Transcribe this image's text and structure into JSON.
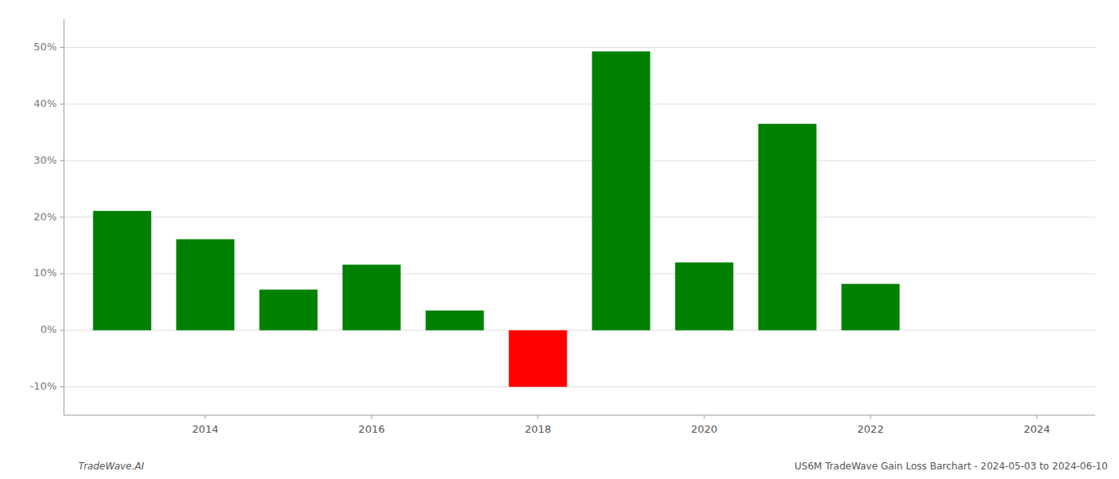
{
  "chart_data": {
    "type": "bar",
    "x": [
      2013,
      2014,
      2015,
      2016,
      2017,
      2018,
      2019,
      2020,
      2021,
      2022,
      2023
    ],
    "values": [
      21.1,
      16.1,
      7.2,
      11.6,
      3.5,
      -10.0,
      49.3,
      12.0,
      36.5,
      8.2,
      0.0
    ],
    "colors": [
      "#008000",
      "#008000",
      "#008000",
      "#008000",
      "#008000",
      "#ff0000",
      "#008000",
      "#008000",
      "#008000",
      "#008000",
      "#008000"
    ],
    "xlim": [
      2012.3,
      2024.7
    ],
    "xticks": [
      2014,
      2016,
      2018,
      2020,
      2022,
      2024
    ],
    "ylim": [
      -15,
      55
    ],
    "yticks": [
      {
        "value": -10,
        "label": "-10%"
      },
      {
        "value": 0,
        "label": "0%"
      },
      {
        "value": 10,
        "label": "10%"
      },
      {
        "value": 20,
        "label": "20%"
      },
      {
        "value": 30,
        "label": "30%"
      },
      {
        "value": 40,
        "label": "40%"
      },
      {
        "value": 50,
        "label": "50%"
      }
    ],
    "grid": true,
    "annotations": [
      "TradeWave.AI",
      "US6M TradeWave Gain Loss Barchart - 2024-05-03 to 2024-06-10"
    ]
  }
}
